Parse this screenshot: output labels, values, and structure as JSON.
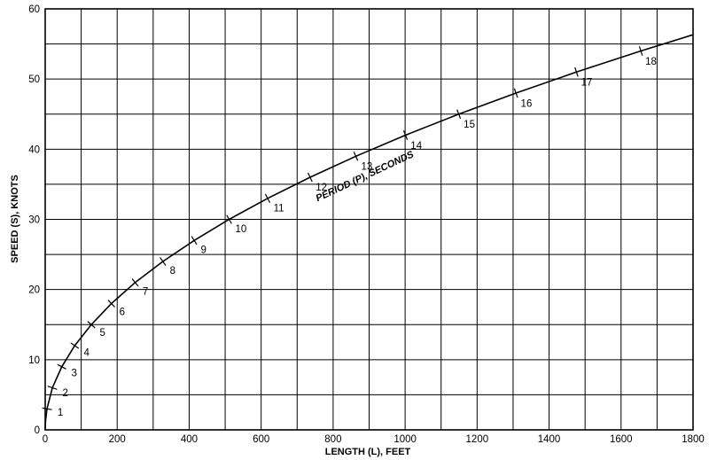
{
  "chart_data": {
    "type": "line",
    "xlabel": "LENGTH (L), FEET",
    "ylabel": "SPEED (S), KNOTS",
    "xlim": [
      0,
      1800
    ],
    "ylim": [
      0,
      60
    ],
    "x_ticks": [
      0,
      200,
      400,
      600,
      800,
      1000,
      1200,
      1400,
      1600,
      1800
    ],
    "y_ticks": [
      0,
      10,
      20,
      30,
      40,
      50,
      60
    ],
    "grid": true,
    "curve_annotation": "PERIOD (P), SECONDS",
    "series": [
      {
        "points": [
          {
            "x": 5,
            "y": 3.0,
            "period": "1"
          },
          {
            "x": 20,
            "y": 6.0,
            "period": "2"
          },
          {
            "x": 46,
            "y": 9.0,
            "period": "3"
          },
          {
            "x": 82,
            "y": 12.0,
            "period": "4"
          },
          {
            "x": 128,
            "y": 15.0,
            "period": "5"
          },
          {
            "x": 184,
            "y": 18.0,
            "period": "6"
          },
          {
            "x": 250,
            "y": 21.0,
            "period": "7"
          },
          {
            "x": 327,
            "y": 24.0,
            "period": "8"
          },
          {
            "x": 414,
            "y": 27.0,
            "period": "9"
          },
          {
            "x": 511,
            "y": 30.0,
            "period": "10"
          },
          {
            "x": 618,
            "y": 33.0,
            "period": "11"
          },
          {
            "x": 736,
            "y": 36.0,
            "period": "12"
          },
          {
            "x": 863,
            "y": 39.0,
            "period": "13"
          },
          {
            "x": 1001,
            "y": 42.0,
            "period": "14"
          },
          {
            "x": 1149,
            "y": 45.0,
            "period": "15"
          },
          {
            "x": 1308,
            "y": 48.0,
            "period": "16"
          },
          {
            "x": 1476,
            "y": 51.0,
            "period": "17"
          },
          {
            "x": 1655,
            "y": 54.0,
            "period": "18"
          }
        ]
      }
    ]
  }
}
